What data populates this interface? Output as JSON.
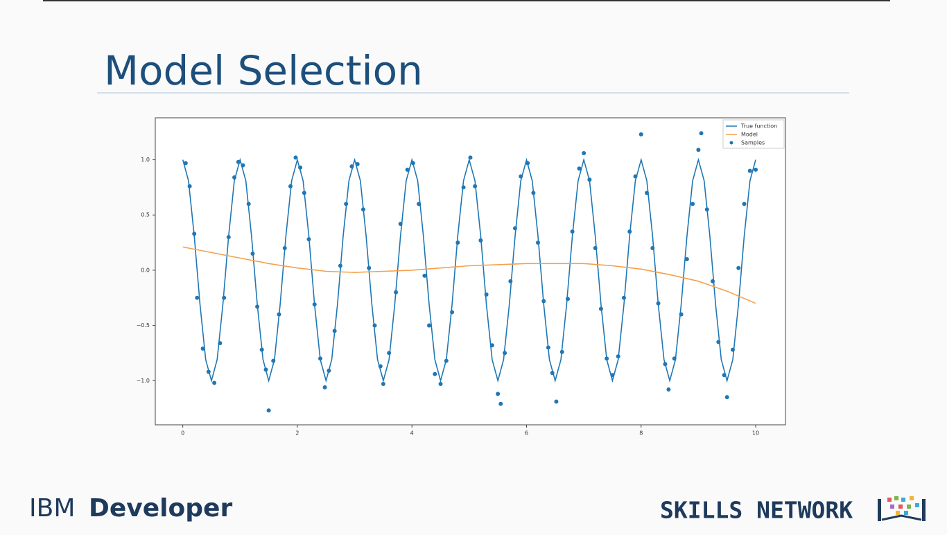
{
  "slide": {
    "title": "Model Selection",
    "brand": "IBM",
    "product": "Developer",
    "network": "SKILLS NETWORK"
  },
  "chart_data": {
    "type": "line",
    "xlim": [
      -0.48,
      10.52
    ],
    "ylim": [
      -1.4,
      1.38
    ],
    "xticks": [
      0,
      2,
      4,
      6,
      8,
      10
    ],
    "yticks": [
      {
        "value": -1.0,
        "label": "−1.0"
      },
      {
        "value": -0.5,
        "label": "−0.5"
      },
      {
        "value": 0.0,
        "label": "0.0"
      },
      {
        "value": 0.5,
        "label": "0.5"
      },
      {
        "value": 1.0,
        "label": "1.0"
      }
    ],
    "legend": "upper right",
    "series": [
      {
        "name": "True function",
        "type": "line",
        "color": "#1f77b4",
        "x": [
          0,
          0.1,
          0.2,
          0.3,
          0.4,
          0.5,
          0.6,
          0.7,
          0.8,
          0.9,
          1,
          1.1,
          1.2,
          1.3,
          1.4,
          1.5,
          1.6,
          1.7,
          1.8,
          1.9,
          2,
          2.1,
          2.2,
          2.3,
          2.4,
          2.5,
          2.6,
          2.7,
          2.8,
          2.9,
          3,
          3.1,
          3.2,
          3.3,
          3.4,
          3.5,
          3.6,
          3.7,
          3.8,
          3.9,
          4,
          4.1,
          4.2,
          4.3,
          4.4,
          4.5,
          4.6,
          4.7,
          4.8,
          4.9,
          5,
          5.1,
          5.2,
          5.3,
          5.4,
          5.5,
          5.6,
          5.7,
          5.8,
          5.9,
          6,
          6.1,
          6.2,
          6.3,
          6.4,
          6.5,
          6.6,
          6.7,
          6.8,
          6.9,
          7,
          7.1,
          7.2,
          7.3,
          7.4,
          7.5,
          7.6,
          7.7,
          7.8,
          7.9,
          8,
          8.1,
          8.2,
          8.3,
          8.4,
          8.5,
          8.6,
          8.7,
          8.8,
          8.9,
          9,
          9.1,
          9.2,
          9.3,
          9.4,
          9.5,
          9.6,
          9.7,
          9.8,
          9.9,
          10
        ],
        "values": [
          1,
          0.81,
          0.31,
          -0.31,
          -0.81,
          -1,
          -0.81,
          -0.31,
          0.31,
          0.81,
          1,
          0.81,
          0.31,
          -0.31,
          -0.81,
          -1,
          -0.81,
          -0.31,
          0.31,
          0.81,
          1,
          0.81,
          0.31,
          -0.31,
          -0.81,
          -1,
          -0.81,
          -0.31,
          0.31,
          0.81,
          1,
          0.81,
          0.31,
          -0.31,
          -0.81,
          -1,
          -0.81,
          -0.31,
          0.31,
          0.81,
          1,
          0.81,
          0.31,
          -0.31,
          -0.81,
          -1,
          -0.81,
          -0.31,
          0.31,
          0.81,
          1,
          0.81,
          0.31,
          -0.31,
          -0.81,
          -1,
          -0.81,
          -0.31,
          0.31,
          0.81,
          1,
          0.81,
          0.31,
          -0.31,
          -0.81,
          -1,
          -0.81,
          -0.31,
          0.31,
          0.81,
          1,
          0.81,
          0.31,
          -0.31,
          -0.81,
          -1,
          -0.81,
          -0.31,
          0.31,
          0.81,
          1,
          0.81,
          0.31,
          -0.31,
          -0.81,
          -1,
          -0.81,
          -0.31,
          0.31,
          0.81,
          1,
          0.81,
          0.31,
          -0.31,
          -0.81,
          -1,
          -0.81,
          -0.31,
          0.31,
          0.81,
          1
        ]
      },
      {
        "name": "Model",
        "type": "line",
        "color": "#f5a04a",
        "x": [
          0,
          0.5,
          1,
          1.5,
          2,
          2.5,
          3,
          3.5,
          4,
          4.5,
          5,
          5.5,
          6,
          6.5,
          7,
          7.5,
          8,
          8.5,
          9,
          9.5,
          10
        ],
        "values": [
          0.21,
          0.16,
          0.11,
          0.06,
          0.02,
          -0.01,
          -0.02,
          -0.01,
          0.0,
          0.02,
          0.04,
          0.05,
          0.06,
          0.06,
          0.06,
          0.04,
          0.01,
          -0.04,
          -0.1,
          -0.19,
          -0.3
        ]
      },
      {
        "name": "Samples",
        "type": "scatter",
        "color": "#1f77b4",
        "x": [
          0.05,
          0.12,
          0.2,
          0.25,
          0.35,
          0.45,
          0.55,
          0.65,
          0.72,
          0.8,
          0.9,
          0.97,
          1.05,
          1.15,
          1.22,
          1.3,
          1.38,
          1.45,
          1.5,
          1.58,
          1.68,
          1.78,
          1.88,
          1.97,
          2.05,
          2.12,
          2.2,
          2.3,
          2.4,
          2.48,
          2.55,
          2.65,
          2.75,
          2.85,
          2.95,
          3.05,
          3.15,
          3.25,
          3.35,
          3.45,
          3.5,
          3.6,
          3.72,
          3.8,
          3.92,
          4.02,
          4.12,
          4.22,
          4.3,
          4.4,
          4.5,
          4.6,
          4.7,
          4.8,
          4.9,
          5.02,
          5.1,
          5.2,
          5.3,
          5.4,
          5.5,
          5.55,
          5.62,
          5.72,
          5.8,
          5.9,
          6.02,
          6.12,
          6.2,
          6.3,
          6.38,
          6.45,
          6.52,
          6.62,
          6.72,
          6.8,
          6.92,
          7.0,
          7.1,
          7.2,
          7.3,
          7.4,
          7.5,
          7.6,
          7.7,
          7.8,
          7.9,
          8.0,
          8.1,
          8.2,
          8.3,
          8.42,
          8.48,
          8.58,
          8.7,
          8.8,
          8.9,
          9.0,
          9.05,
          9.15,
          9.25,
          9.35,
          9.45,
          9.5,
          9.6,
          9.7,
          9.8,
          9.9,
          10
        ],
        "values": [
          0.97,
          0.76,
          0.33,
          -0.25,
          -0.71,
          -0.92,
          -1.02,
          -0.66,
          -0.25,
          0.3,
          0.84,
          0.98,
          0.95,
          0.6,
          0.15,
          -0.33,
          -0.72,
          -0.9,
          -1.27,
          -0.82,
          -0.4,
          0.2,
          0.76,
          1.02,
          0.93,
          0.7,
          0.28,
          -0.31,
          -0.8,
          -1.06,
          -0.91,
          -0.55,
          0.04,
          0.6,
          0.94,
          0.96,
          0.55,
          0.02,
          -0.5,
          -0.87,
          -1.03,
          -0.75,
          -0.2,
          0.42,
          0.91,
          0.97,
          0.6,
          -0.05,
          -0.5,
          -0.94,
          -1.03,
          -0.82,
          -0.38,
          0.25,
          0.75,
          1.02,
          0.76,
          0.27,
          -0.22,
          -0.68,
          -1.12,
          -1.21,
          -0.75,
          -0.1,
          0.38,
          0.85,
          0.97,
          0.7,
          0.25,
          -0.28,
          -0.7,
          -0.93,
          -1.19,
          -0.74,
          -0.26,
          0.35,
          0.92,
          1.06,
          0.82,
          0.2,
          -0.35,
          -0.8,
          -0.95,
          -0.78,
          -0.25,
          0.35,
          0.85,
          1.23,
          0.7,
          0.2,
          -0.3,
          -0.85,
          -1.08,
          -0.8,
          -0.4,
          0.1,
          0.6,
          1.09,
          1.24,
          0.55,
          -0.1,
          -0.65,
          -0.95,
          -1.15,
          -0.72,
          0.02,
          0.6,
          0.9,
          0.91
        ]
      }
    ]
  }
}
